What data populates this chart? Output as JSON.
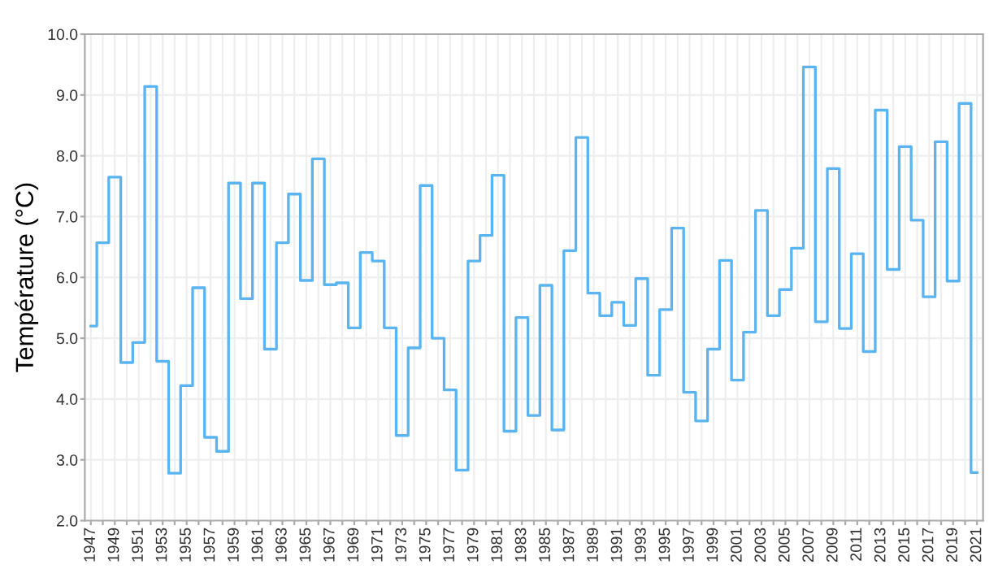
{
  "chart_data": {
    "type": "step",
    "ylabel": "Température (°C)",
    "x": [
      1947,
      1948,
      1949,
      1950,
      1951,
      1952,
      1953,
      1954,
      1955,
      1956,
      1957,
      1958,
      1959,
      1960,
      1961,
      1962,
      1963,
      1964,
      1965,
      1966,
      1967,
      1968,
      1969,
      1970,
      1971,
      1972,
      1973,
      1974,
      1975,
      1976,
      1977,
      1978,
      1979,
      1980,
      1981,
      1982,
      1983,
      1984,
      1985,
      1986,
      1987,
      1988,
      1989,
      1990,
      1991,
      1992,
      1993,
      1994,
      1995,
      1996,
      1997,
      1998,
      1999,
      2000,
      2001,
      2002,
      2003,
      2004,
      2005,
      2006,
      2007,
      2008,
      2009,
      2010,
      2011,
      2012,
      2013,
      2014,
      2015,
      2016,
      2017,
      2018,
      2019,
      2020,
      2021
    ],
    "series": [
      {
        "color": "#5ab4f0",
        "values": [
          5.2,
          6.57,
          7.65,
          4.6,
          4.93,
          9.14,
          4.62,
          2.78,
          4.22,
          5.83,
          3.37,
          3.14,
          7.55,
          5.65,
          7.55,
          4.82,
          6.57,
          7.37,
          5.95,
          7.95,
          5.88,
          5.91,
          5.17,
          6.41,
          6.27,
          5.17,
          3.4,
          4.84,
          7.51,
          5.0,
          4.15,
          2.83,
          6.27,
          6.69,
          7.68,
          3.47,
          5.34,
          3.73,
          5.87,
          3.49,
          6.44,
          8.3,
          5.74,
          5.37,
          5.59,
          5.21,
          5.98,
          4.39,
          5.47,
          6.81,
          4.11,
          3.64,
          4.82,
          6.28,
          4.31,
          5.1,
          7.1,
          5.37,
          5.8,
          6.48,
          9.46,
          5.27,
          7.79,
          5.16,
          6.39,
          4.78,
          8.75,
          6.13,
          8.15,
          6.94,
          5.68,
          8.23,
          5.94,
          8.86,
          2.79
        ]
      }
    ],
    "xlim": [
      1946.5,
      2021.5
    ],
    "xticks": [
      1947,
      {
        "value": 1948,
        "label": null
      },
      1949,
      {
        "value": 1950,
        "label": null
      },
      1951,
      {
        "value": 1952,
        "label": null
      },
      1953,
      {
        "value": 1954,
        "label": null
      },
      1955,
      {
        "value": 1956,
        "label": null
      },
      1957,
      {
        "value": 1958,
        "label": null
      },
      1959,
      {
        "value": 1960,
        "label": null
      },
      1961,
      {
        "value": 1962,
        "label": null
      },
      1963,
      {
        "value": 1964,
        "label": null
      },
      1965,
      {
        "value": 1966,
        "label": null
      },
      1967,
      {
        "value": 1968,
        "label": null
      },
      1969,
      {
        "value": 1970,
        "label": null
      },
      1971,
      {
        "value": 1972,
        "label": null
      },
      1973,
      {
        "value": 1974,
        "label": null
      },
      1975,
      {
        "value": 1976,
        "label": null
      },
      1977,
      {
        "value": 1978,
        "label": null
      },
      1979,
      {
        "value": 1980,
        "label": null
      },
      1981,
      {
        "value": 1982,
        "label": null
      },
      1983,
      {
        "value": 1984,
        "label": null
      },
      1985,
      {
        "value": 1986,
        "label": null
      },
      1987,
      {
        "value": 1988,
        "label": null
      },
      1989,
      {
        "value": 1990,
        "label": null
      },
      1991,
      {
        "value": 1992,
        "label": null
      },
      1993,
      {
        "value": 1994,
        "label": null
      },
      1995,
      {
        "value": 1996,
        "label": null
      },
      1997,
      {
        "value": 1998,
        "label": null
      },
      1999,
      {
        "value": 2000,
        "label": null
      },
      2001,
      {
        "value": 2002,
        "label": null
      },
      2003,
      {
        "value": 2004,
        "label": null
      },
      2005,
      {
        "value": 2006,
        "label": null
      },
      2007,
      {
        "value": 2008,
        "label": null
      },
      2009,
      {
        "value": 2010,
        "label": null
      },
      2011,
      {
        "value": 2012,
        "label": null
      },
      2013,
      {
        "value": 2014,
        "label": null
      },
      2015,
      {
        "value": 2016,
        "label": null
      },
      2017,
      {
        "value": 2018,
        "label": null
      },
      2019,
      {
        "value": 2020,
        "label": null
      },
      2021
    ],
    "ylim": [
      2,
      10
    ],
    "yticks": [
      {
        "value": 2,
        "label": "2.0"
      },
      {
        "value": 3,
        "label": "3.0"
      },
      {
        "value": 4,
        "label": "4.0"
      },
      {
        "value": 5,
        "label": "5.0"
      },
      {
        "value": 6,
        "label": "6.0"
      },
      {
        "value": 7,
        "label": "7.0"
      },
      {
        "value": 8,
        "label": "8.0"
      },
      {
        "value": 9,
        "label": "9.0"
      },
      {
        "value": 10,
        "label": "10.0"
      }
    ],
    "grid": true,
    "line_style": "solid"
  }
}
